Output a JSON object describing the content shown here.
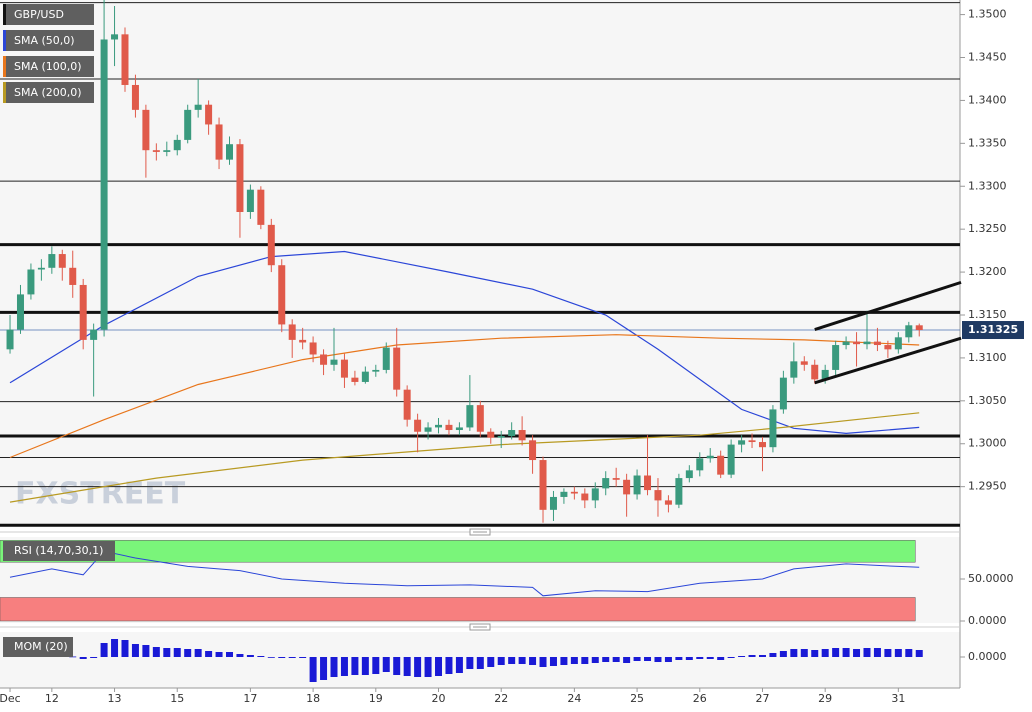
{
  "chart_data": [
    {
      "type": "candlestick",
      "watermark": "FXSTREET",
      "xlim": [
        -0.96,
        90.9
      ],
      "ylim": [
        1.2903,
        1.3517
      ],
      "xticks": [
        {
          "value": 0,
          "label": "Dec"
        },
        {
          "value": 4,
          "label": "12"
        },
        {
          "value": 10,
          "label": "13"
        },
        {
          "value": 16,
          "label": "15"
        },
        {
          "value": 23,
          "label": "17"
        },
        {
          "value": 29,
          "label": "18"
        },
        {
          "value": 35,
          "label": "19"
        },
        {
          "value": 41,
          "label": "20"
        },
        {
          "value": 47,
          "label": "22"
        },
        {
          "value": 54,
          "label": "24"
        },
        {
          "value": 60,
          "label": "25"
        },
        {
          "value": 66,
          "label": "26"
        },
        {
          "value": 72,
          "label": "27"
        },
        {
          "value": 78,
          "label": "29"
        },
        {
          "value": 85,
          "label": "31"
        }
      ],
      "yticks": [
        {
          "value": 1.295,
          "label": "1.2950"
        },
        {
          "value": 1.3,
          "label": "1.3000"
        },
        {
          "value": 1.305,
          "label": "1.3050"
        },
        {
          "value": 1.31,
          "label": "1.3100"
        },
        {
          "value": 1.315,
          "label": "1.3150"
        },
        {
          "value": 1.32,
          "label": "1.3200"
        },
        {
          "value": 1.325,
          "label": "1.3250"
        },
        {
          "value": 1.33,
          "label": "1.3300"
        },
        {
          "value": 1.335,
          "label": "1.3350"
        },
        {
          "value": 1.34,
          "label": "1.3400"
        },
        {
          "value": 1.345,
          "label": "1.3450"
        },
        {
          "value": 1.35,
          "label": "1.3500"
        }
      ],
      "last_price": 1.31325,
      "last_price_color": "#1f3a63",
      "levels": [
        1.3514,
        1.3425,
        1.3306,
        1.3049,
        1.2984,
        1.295
      ],
      "major_levels": [
        1.3232,
        1.3153,
        1.3009,
        1.2905
      ],
      "trendlines": [
        {
          "x": [
            77,
            91
          ],
          "values": [
            1.3133,
            1.3188
          ]
        },
        {
          "x": [
            77,
            91
          ],
          "values": [
            1.3071,
            1.3123
          ]
        }
      ],
      "series": [
        {
          "name": "GBP/USD",
          "color": "#111111",
          "color_up": "#3a9a7e",
          "color_down": "#e05a4a",
          "ohlc": [
            [
              1.311,
              1.315,
              1.3105,
              1.3133
            ],
            [
              1.3133,
              1.3185,
              1.3128,
              1.3174
            ],
            [
              1.3174,
              1.321,
              1.3168,
              1.3203
            ],
            [
              1.3203,
              1.3215,
              1.319,
              1.3205
            ],
            [
              1.3205,
              1.323,
              1.3198,
              1.3221
            ],
            [
              1.3221,
              1.3226,
              1.319,
              1.3205
            ],
            [
              1.3205,
              1.3225,
              1.317,
              1.3185
            ],
            [
              1.3185,
              1.3192,
              1.311,
              1.3121
            ],
            [
              1.3121,
              1.314,
              1.3055,
              1.3133
            ],
            [
              1.3133,
              1.3517,
              1.3125,
              1.3471
            ],
            [
              1.3471,
              1.351,
              1.344,
              1.3477
            ],
            [
              1.3477,
              1.3485,
              1.341,
              1.3418
            ],
            [
              1.3418,
              1.343,
              1.338,
              1.3389
            ],
            [
              1.3389,
              1.3395,
              1.331,
              1.3342
            ],
            [
              1.3342,
              1.335,
              1.333,
              1.334
            ],
            [
              1.334,
              1.3352,
              1.3335,
              1.3342
            ],
            [
              1.3342,
              1.336,
              1.3336,
              1.3354
            ],
            [
              1.3354,
              1.3395,
              1.335,
              1.3389
            ],
            [
              1.3389,
              1.3425,
              1.338,
              1.3395
            ],
            [
              1.3395,
              1.34,
              1.336,
              1.3372
            ],
            [
              1.3372,
              1.338,
              1.332,
              1.3331
            ],
            [
              1.3331,
              1.3358,
              1.3325,
              1.3349
            ],
            [
              1.3349,
              1.3355,
              1.324,
              1.327
            ],
            [
              1.327,
              1.3302,
              1.3262,
              1.3296
            ],
            [
              1.3296,
              1.33,
              1.325,
              1.3255
            ],
            [
              1.3255,
              1.3262,
              1.32,
              1.3208
            ],
            [
              1.3208,
              1.3215,
              1.313,
              1.3139
            ],
            [
              1.3139,
              1.3145,
              1.31,
              1.3121
            ],
            [
              1.3121,
              1.3135,
              1.311,
              1.3118
            ],
            [
              1.3118,
              1.3125,
              1.3095,
              1.3104
            ],
            [
              1.3104,
              1.311,
              1.308,
              1.3092
            ],
            [
              1.3092,
              1.3135,
              1.3085,
              1.3098
            ],
            [
              1.3098,
              1.3105,
              1.3065,
              1.3077
            ],
            [
              1.3077,
              1.3085,
              1.3068,
              1.3072
            ],
            [
              1.3072,
              1.309,
              1.307,
              1.3084
            ],
            [
              1.3084,
              1.3092,
              1.3078,
              1.3086
            ],
            [
              1.3086,
              1.3118,
              1.3082,
              1.3112
            ],
            [
              1.3112,
              1.3135,
              1.3055,
              1.3063
            ],
            [
              1.3063,
              1.3068,
              1.302,
              1.3028
            ],
            [
              1.3028,
              1.3035,
              1.299,
              1.3014
            ],
            [
              1.3014,
              1.3025,
              1.3005,
              1.3019
            ],
            [
              1.3019,
              1.303,
              1.3012,
              1.3022
            ],
            [
              1.3022,
              1.3028,
              1.301,
              1.3016
            ],
            [
              1.3016,
              1.3025,
              1.301,
              1.3019
            ],
            [
              1.3019,
              1.308,
              1.3015,
              1.3045
            ],
            [
              1.3045,
              1.305,
              1.3008,
              1.3014
            ],
            [
              1.3014,
              1.3018,
              1.3,
              1.3007
            ],
            [
              1.3007,
              1.3015,
              1.2995,
              1.3009
            ],
            [
              1.3009,
              1.3025,
              1.3005,
              1.3016
            ],
            [
              1.3016,
              1.3032,
              1.2998,
              1.3004
            ],
            [
              1.3004,
              1.301,
              1.2965,
              1.2981
            ],
            [
              1.2981,
              1.2985,
              1.2908,
              1.2923
            ],
            [
              1.2923,
              1.2945,
              1.291,
              1.2938
            ],
            [
              1.2938,
              1.2948,
              1.293,
              1.2944
            ],
            [
              1.2944,
              1.295,
              1.2935,
              1.2942
            ],
            [
              1.2942,
              1.2948,
              1.2925,
              1.2934
            ],
            [
              1.2934,
              1.2955,
              1.2925,
              1.2948
            ],
            [
              1.2948,
              1.2968,
              1.294,
              1.296
            ],
            [
              1.296,
              1.2972,
              1.295,
              1.2958
            ],
            [
              1.2958,
              1.2965,
              1.2915,
              1.2941
            ],
            [
              1.2941,
              1.297,
              1.2935,
              1.2963
            ],
            [
              1.2963,
              1.301,
              1.294,
              1.2946
            ],
            [
              1.2946,
              1.296,
              1.2915,
              1.2934
            ],
            [
              1.2934,
              1.294,
              1.292,
              1.2929
            ],
            [
              1.2929,
              1.2965,
              1.2925,
              1.296
            ],
            [
              1.296,
              1.2975,
              1.2955,
              1.2969
            ],
            [
              1.2969,
              1.299,
              1.2962,
              1.2983
            ],
            [
              1.2983,
              1.2995,
              1.2978,
              1.2986
            ],
            [
              1.2986,
              1.2992,
              1.296,
              1.2964
            ],
            [
              1.2964,
              1.3005,
              1.296,
              1.2999
            ],
            [
              1.2999,
              1.301,
              1.299,
              1.3004
            ],
            [
              1.3004,
              1.3012,
              1.2995,
              1.3002
            ],
            [
              1.3002,
              1.3008,
              1.2968,
              1.2996
            ],
            [
              1.2996,
              1.3045,
              1.299,
              1.304
            ],
            [
              1.304,
              1.3085,
              1.3035,
              1.3077
            ],
            [
              1.3077,
              1.3118,
              1.307,
              1.3096
            ],
            [
              1.3096,
              1.3102,
              1.3085,
              1.3092
            ],
            [
              1.3092,
              1.3098,
              1.307,
              1.3075
            ],
            [
              1.3075,
              1.3092,
              1.307,
              1.3086
            ],
            [
              1.3086,
              1.312,
              1.308,
              1.3115
            ],
            [
              1.3115,
              1.3125,
              1.311,
              1.3119
            ],
            [
              1.3119,
              1.313,
              1.309,
              1.3116
            ],
            [
              1.3116,
              1.3155,
              1.311,
              1.3119
            ],
            [
              1.3119,
              1.3135,
              1.3108,
              1.3115
            ],
            [
              1.3115,
              1.312,
              1.31,
              1.311
            ],
            [
              1.311,
              1.313,
              1.3105,
              1.3124
            ],
            [
              1.3124,
              1.3142,
              1.3118,
              1.3138
            ],
            [
              1.3138,
              1.314,
              1.3125,
              1.31325
            ]
          ]
        }
      ],
      "lines": [
        {
          "name": "SMA (50,0)",
          "color": "#2b46d8",
          "x": [
            0,
            9,
            18,
            25,
            32,
            42,
            50,
            57,
            62,
            70,
            75,
            80,
            87
          ],
          "values": [
            1.3071,
            1.3138,
            1.3195,
            1.3218,
            1.3224,
            1.32,
            1.318,
            1.315,
            1.311,
            1.304,
            1.3018,
            1.3012,
            1.3019
          ]
        },
        {
          "name": "SMA (100,0)",
          "color": "#e8761c",
          "x": [
            0,
            9,
            18,
            28,
            37,
            47,
            58,
            68,
            76,
            87
          ],
          "values": [
            1.2984,
            1.3028,
            1.3069,
            1.3098,
            1.3115,
            1.3123,
            1.3127,
            1.3123,
            1.3121,
            1.3115
          ]
        },
        {
          "name": "SMA (200,0)",
          "color": "#b89a22",
          "x": [
            0,
            14,
            28,
            47,
            66,
            74,
            87
          ],
          "values": [
            1.2932,
            1.296,
            1.2981,
            1.2999,
            1.301,
            1.3019,
            1.3036
          ]
        }
      ]
    },
    {
      "type": "line",
      "title": "RSI (14,70,30,1)",
      "ylim": [
        0,
        100
      ],
      "yticks": [
        {
          "value": 50,
          "label": "50.0000"
        },
        {
          "value": 0,
          "label": "0.0000"
        }
      ],
      "bands": [
        {
          "from": 70,
          "to": 96,
          "color": "#7af57a"
        },
        {
          "from": 0,
          "to": 28,
          "color": "#f77f7f"
        }
      ],
      "series": [
        {
          "color": "#2b46d8",
          "x": [
            0,
            4,
            7,
            9,
            12,
            17,
            22,
            26,
            32,
            38,
            44,
            50,
            51,
            56,
            61,
            66,
            72,
            75,
            80,
            85,
            87
          ],
          "values": [
            52,
            62,
            55,
            83,
            75,
            65,
            60,
            50,
            45,
            42,
            43,
            40,
            30,
            36,
            35,
            45,
            50,
            62,
            68,
            65,
            64
          ]
        }
      ]
    },
    {
      "type": "bar",
      "title": "MOM (20)",
      "ylim": [
        -0.031,
        0.025
      ],
      "yticks": [
        {
          "value": 0,
          "label": "0.0000"
        }
      ],
      "color": "#1a1ad6",
      "values": [
        0.001,
        0.001,
        0.002,
        0.002,
        0.001,
        0.001,
        0.0005,
        -0.002,
        -0.001,
        0.014,
        0.018,
        0.017,
        0.013,
        0.012,
        0.01,
        0.009,
        0.009,
        0.008,
        0.008,
        0.006,
        0.005,
        0.005,
        0.003,
        0.002,
        0.001,
        -0.0005,
        -0.001,
        -0.001,
        -0.001,
        -0.025,
        -0.023,
        -0.02,
        -0.019,
        -0.018,
        -0.018,
        -0.017,
        -0.015,
        -0.018,
        -0.019,
        -0.02,
        -0.02,
        -0.019,
        -0.017,
        -0.016,
        -0.012,
        -0.012,
        -0.01,
        -0.008,
        -0.007,
        -0.007,
        -0.008,
        -0.01,
        -0.009,
        -0.008,
        -0.007,
        -0.007,
        -0.006,
        -0.005,
        -0.005,
        -0.006,
        -0.004,
        -0.004,
        -0.005,
        -0.005,
        -0.003,
        -0.003,
        -0.002,
        -0.002,
        -0.003,
        -0.001,
        0.001,
        0.002,
        0.002,
        0.004,
        0.006,
        0.008,
        0.008,
        0.007,
        0.008,
        0.009,
        0.009,
        0.008,
        0.009,
        0.009,
        0.008,
        0.008,
        0.008,
        0.007
      ]
    }
  ]
}
